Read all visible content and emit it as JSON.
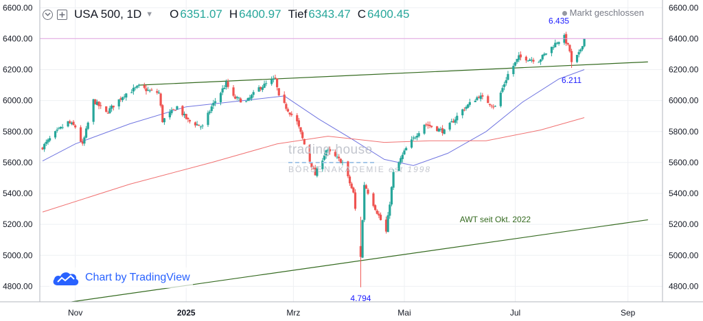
{
  "header": {
    "symbol": "USA 500, 1D",
    "open_label": "O",
    "open_value": "6351.07",
    "high_label": "H",
    "high_value": "6400.97",
    "low_label": "Tief",
    "low_value": "6343.47",
    "close_label": "C",
    "close_value": "6400.45",
    "status": "Markt geschlossen"
  },
  "watermark": {
    "text": "Chart by TradingView",
    "brand_line1": "trading-house",
    "brand_line2": "BÖRSENAKADEMIE",
    "brand_sig": "est 1998"
  },
  "colors": {
    "up": "#26a69a",
    "down": "#ef5350",
    "wedge": "#33691e",
    "ma50": "#6f74e0",
    "ma200": "#f07070",
    "price_line": "#e1a0e0",
    "price_tag": "#e872d9",
    "annotation": "#1a1aff"
  },
  "chart_data": {
    "type": "candlestick",
    "title": "USA 500, 1D",
    "ylim": [
      4700,
      6650
    ],
    "y_ticks": [
      "6600.00",
      "6400.00",
      "6200.00",
      "6000.00",
      "5800.00",
      "5600.00",
      "5400.00",
      "5200.00",
      "5000.00",
      "4800.00"
    ],
    "x_ticks": [
      {
        "label": "Nov",
        "date": "2024-11-01"
      },
      {
        "label": "2025",
        "date": "2025-01-01"
      },
      {
        "label": "Mrz",
        "date": "2025-03-01"
      },
      {
        "label": "Mai",
        "date": "2025-05-01"
      },
      {
        "label": "Jul",
        "date": "2025-07-01"
      },
      {
        "label": "Sep",
        "date": "2025-09-01"
      }
    ],
    "current_price": "6400.45",
    "close_anchors": [
      [
        "2024-10-14",
        5700
      ],
      [
        "2024-10-21",
        5790
      ],
      [
        "2024-10-28",
        5860
      ],
      [
        "2024-11-01",
        5830
      ],
      [
        "2024-11-05",
        5710
      ],
      [
        "2024-11-11",
        6000
      ],
      [
        "2024-11-18",
        5920
      ],
      [
        "2024-11-28",
        6040
      ],
      [
        "2024-12-06",
        6090
      ],
      [
        "2024-12-12",
        6060
      ],
      [
        "2024-12-17",
        6050
      ],
      [
        "2024-12-19",
        5870
      ],
      [
        "2024-12-27",
        5960
      ],
      [
        "2025-01-02",
        5870
      ],
      [
        "2025-01-10",
        5830
      ],
      [
        "2025-01-15",
        5960
      ],
      [
        "2025-01-23",
        6110
      ],
      [
        "2025-01-27",
        6020
      ],
      [
        "2025-02-03",
        5990
      ],
      [
        "2025-02-10",
        6080
      ],
      [
        "2025-02-19",
        6140
      ],
      [
        "2025-02-21",
        6020
      ],
      [
        "2025-03-03",
        5860
      ],
      [
        "2025-03-10",
        5610
      ],
      [
        "2025-03-13",
        5520
      ],
      [
        "2025-03-19",
        5680
      ],
      [
        "2025-03-28",
        5600
      ],
      [
        "2025-04-03",
        5400
      ],
      [
        "2025-04-07",
        4990
      ],
      [
        "2025-04-09",
        5460
      ],
      [
        "2025-04-16",
        5280
      ],
      [
        "2025-04-21",
        5150
      ],
      [
        "2025-04-25",
        5530
      ],
      [
        "2025-05-02",
        5690
      ],
      [
        "2025-05-12",
        5850
      ],
      [
        "2025-05-23",
        5800
      ],
      [
        "2025-06-02",
        5940
      ],
      [
        "2025-06-11",
        6030
      ],
      [
        "2025-06-20",
        5960
      ],
      [
        "2025-06-27",
        6170
      ],
      [
        "2025-07-03",
        6280
      ],
      [
        "2025-07-14",
        6260
      ],
      [
        "2025-07-24",
        6380
      ],
      [
        "2025-07-28",
        6410
      ],
      [
        "2025-07-31",
        6320
      ],
      [
        "2025-08-01",
        6240
      ],
      [
        "2025-08-05",
        6300
      ],
      [
        "2025-08-08",
        6400
      ]
    ],
    "ohlc_last": {
      "open": 6351.07,
      "high": 6400.97,
      "low": 6343.47,
      "close": 6400.45
    },
    "ma50_anchors": [
      [
        "2024-10-14",
        5610
      ],
      [
        "2024-11-01",
        5720
      ],
      [
        "2024-12-01",
        5850
      ],
      [
        "2025-01-01",
        5960
      ],
      [
        "2025-02-01",
        6000
      ],
      [
        "2025-02-24",
        6030
      ],
      [
        "2025-03-15",
        5880
      ],
      [
        "2025-04-01",
        5760
      ],
      [
        "2025-04-20",
        5620
      ],
      [
        "2025-05-06",
        5580
      ],
      [
        "2025-05-25",
        5660
      ],
      [
        "2025-06-15",
        5800
      ],
      [
        "2025-07-05",
        5990
      ],
      [
        "2025-07-25",
        6140
      ],
      [
        "2025-08-08",
        6200
      ]
    ],
    "ma200_anchors": [
      [
        "2024-10-14",
        5280
      ],
      [
        "2024-12-01",
        5460
      ],
      [
        "2025-01-15",
        5600
      ],
      [
        "2025-02-20",
        5720
      ],
      [
        "2025-03-20",
        5770
      ],
      [
        "2025-04-20",
        5730
      ],
      [
        "2025-05-15",
        5740
      ],
      [
        "2025-06-15",
        5740
      ],
      [
        "2025-07-15",
        5810
      ],
      [
        "2025-08-08",
        5890
      ]
    ],
    "trendlines": [
      {
        "name": "upper",
        "from": [
          "2024-12-06",
          6100
        ],
        "to": [
          "2025-09-12",
          6250
        ]
      },
      {
        "name": "AWT seit Okt. 2022",
        "from": [
          "2024-10-30",
          4700
        ],
        "to": [
          "2025-09-12",
          5230
        ]
      }
    ],
    "annotations": [
      {
        "text": "6.435",
        "date": "2025-07-25",
        "value": 6435
      },
      {
        "text": "6.211",
        "date": "2025-08-01",
        "value": 6211
      },
      {
        "text": "4.794",
        "date": "2025-04-07",
        "value": 4794
      },
      {
        "text": "AWT seit Okt. 2022",
        "date": "2025-06-20",
        "value": 5215
      }
    ],
    "legend": "none",
    "grid": true
  }
}
